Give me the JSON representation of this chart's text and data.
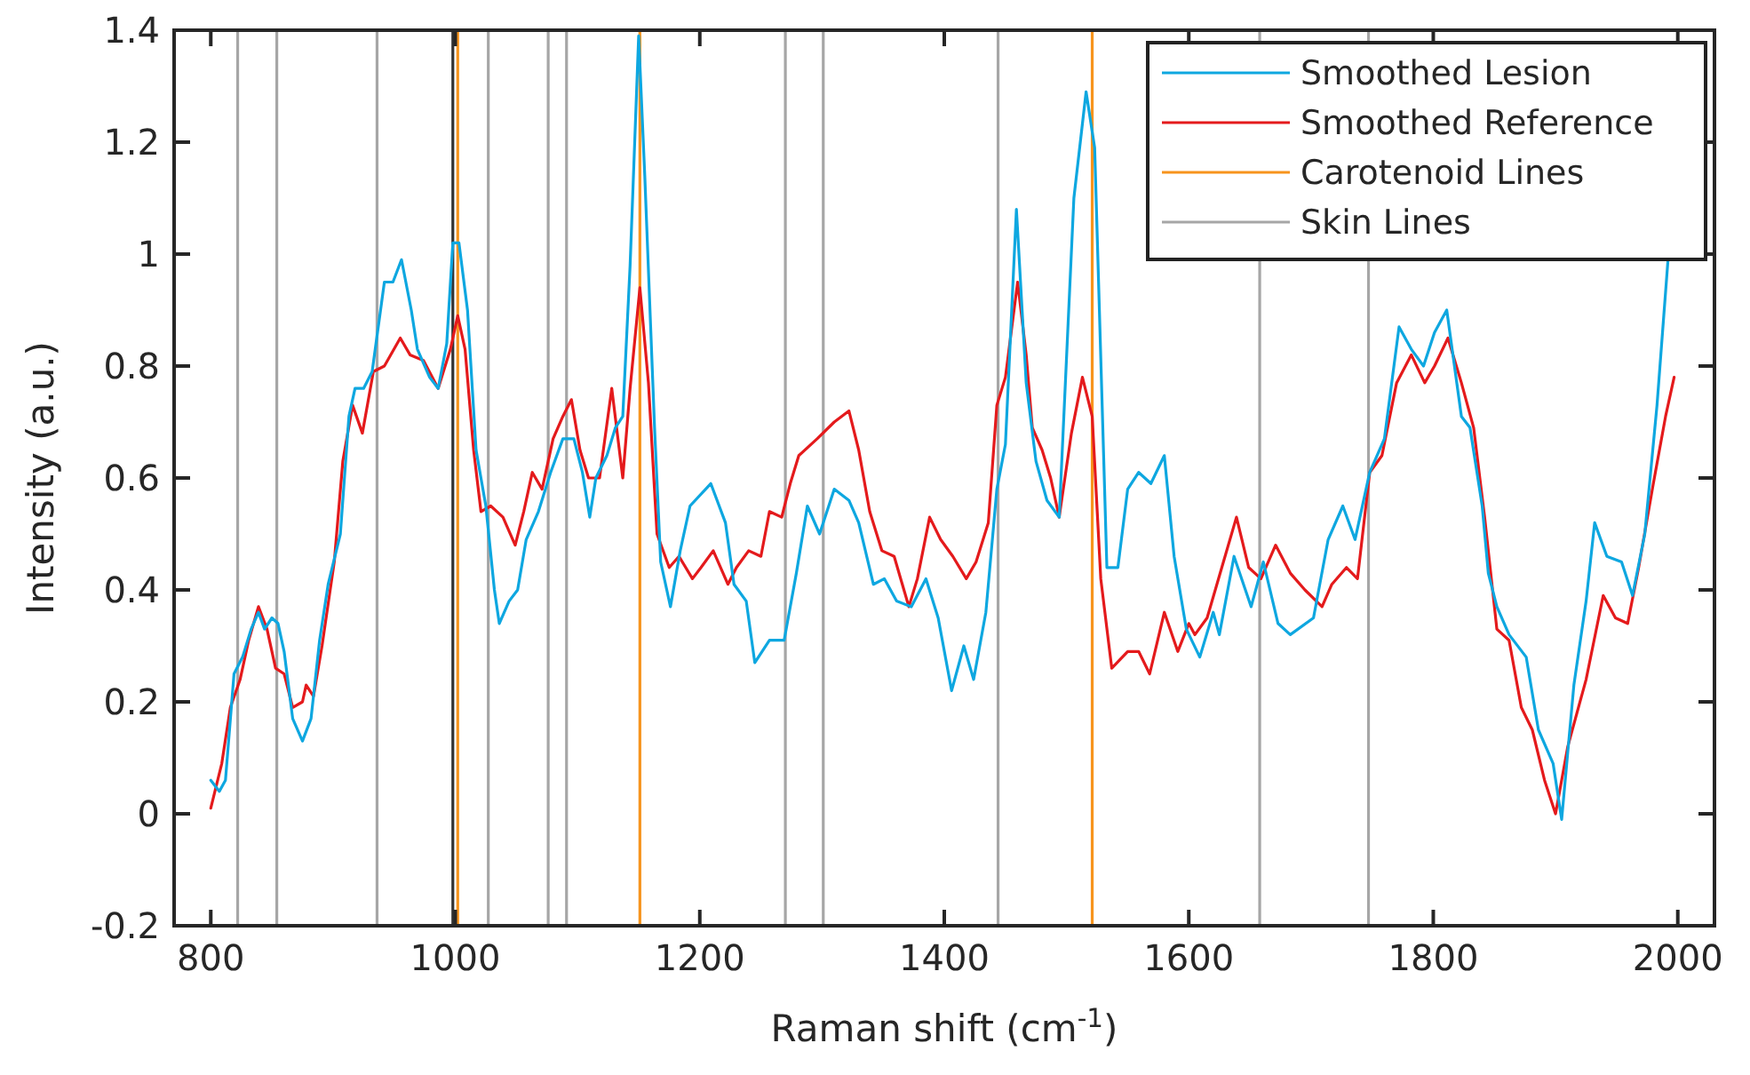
{
  "chart_data": {
    "type": "line",
    "xlabel": "Raman shift (cm$^{-1}$)",
    "ylabel": "Intensity (a.u.)",
    "xlim": [
      770,
      2030
    ],
    "ylim": [
      -0.2,
      1.4
    ],
    "xticks": [
      800,
      1000,
      1200,
      1400,
      1600,
      1800,
      2000
    ],
    "yticks": [
      -0.2,
      0,
      0.2,
      0.4,
      0.6,
      0.8,
      1,
      1.2,
      1.4
    ],
    "grid": false,
    "legend": "top right",
    "line_style": "solid",
    "marker": "none",
    "series": [
      {
        "name": "Smoothed Lesion",
        "color": "#0ea7e0",
        "x": [
          800,
          807,
          812,
          819,
          826,
          833,
          839,
          844,
          850,
          855,
          860,
          867,
          875,
          882,
          889,
          896,
          906,
          913,
          918,
          925,
          932,
          942,
          949,
          956,
          964,
          969,
          979,
          986,
          993,
          998,
          1003,
          1010,
          1017,
          1025,
          1032,
          1036,
          1044,
          1051,
          1058,
          1068,
          1078,
          1088,
          1097,
          1104,
          1110,
          1115,
          1124,
          1131,
          1137,
          1143,
          1150,
          1155,
          1163,
          1168,
          1176,
          1184,
          1192,
          1209,
          1221,
          1228,
          1238,
          1245,
          1257,
          1269,
          1279,
          1288,
          1298,
          1310,
          1322,
          1330,
          1342,
          1351,
          1361,
          1373,
          1385,
          1395,
          1406,
          1416,
          1424,
          1434,
          1443,
          1450,
          1459,
          1467,
          1475,
          1484,
          1494,
          1506,
          1516,
          1523,
          1533,
          1542,
          1550,
          1559,
          1569,
          1580,
          1588,
          1598,
          1609,
          1620,
          1625,
          1637,
          1651,
          1661,
          1673,
          1683,
          1702,
          1714,
          1726,
          1736,
          1748,
          1760,
          1772,
          1782,
          1792,
          1801,
          1811,
          1823,
          1830,
          1840,
          1845,
          1852,
          1862,
          1876,
          1886,
          1898,
          1905,
          1915,
          1925,
          1932,
          1942,
          1954,
          1963,
          1973,
          1983,
          1992
        ],
        "values": [
          0.06,
          0.04,
          0.06,
          0.25,
          0.28,
          0.33,
          0.36,
          0.33,
          0.35,
          0.34,
          0.29,
          0.17,
          0.13,
          0.17,
          0.31,
          0.41,
          0.5,
          0.71,
          0.76,
          0.76,
          0.79,
          0.95,
          0.95,
          0.99,
          0.9,
          0.83,
          0.78,
          0.76,
          0.84,
          1.02,
          1.02,
          0.9,
          0.65,
          0.55,
          0.4,
          0.34,
          0.38,
          0.4,
          0.49,
          0.54,
          0.61,
          0.67,
          0.67,
          0.61,
          0.53,
          0.6,
          0.64,
          0.69,
          0.71,
          0.98,
          1.39,
          1.14,
          0.69,
          0.45,
          0.37,
          0.47,
          0.55,
          0.59,
          0.52,
          0.41,
          0.38,
          0.27,
          0.31,
          0.31,
          0.43,
          0.55,
          0.5,
          0.58,
          0.56,
          0.52,
          0.41,
          0.42,
          0.38,
          0.37,
          0.42,
          0.35,
          0.22,
          0.3,
          0.24,
          0.36,
          0.58,
          0.66,
          1.08,
          0.77,
          0.63,
          0.56,
          0.53,
          1.1,
          1.29,
          1.19,
          0.44,
          0.44,
          0.58,
          0.61,
          0.59,
          0.64,
          0.46,
          0.33,
          0.28,
          0.36,
          0.32,
          0.46,
          0.37,
          0.45,
          0.34,
          0.32,
          0.35,
          0.49,
          0.55,
          0.49,
          0.61,
          0.67,
          0.87,
          0.83,
          0.8,
          0.86,
          0.9,
          0.71,
          0.69,
          0.55,
          0.43,
          0.37,
          0.32,
          0.28,
          0.15,
          0.09,
          -0.01,
          0.23,
          0.38,
          0.52,
          0.46,
          0.45,
          0.39,
          0.5,
          0.73,
          0.99
        ]
      },
      {
        "name": "Smoothed Reference",
        "color": "#e41a1c",
        "x": [
          800,
          809,
          816,
          824,
          831,
          839,
          846,
          853,
          860,
          867,
          875,
          878,
          884,
          891,
          901,
          908,
          916,
          924,
          933,
          942,
          955,
          963,
          974,
          986,
          996,
          1002,
          1008,
          1015,
          1021,
          1029,
          1039,
          1049,
          1056,
          1063,
          1071,
          1080,
          1088,
          1095,
          1102,
          1109,
          1118,
          1128,
          1137,
          1143,
          1151,
          1158,
          1165,
          1175,
          1183,
          1194,
          1201,
          1211,
          1223,
          1230,
          1240,
          1250,
          1257,
          1267,
          1274,
          1281,
          1296,
          1310,
          1322,
          1330,
          1339,
          1349,
          1359,
          1371,
          1378,
          1388,
          1397,
          1407,
          1418,
          1426,
          1436,
          1443,
          1450,
          1460,
          1467,
          1472,
          1480,
          1487,
          1494,
          1504,
          1513,
          1521,
          1528,
          1537,
          1550,
          1559,
          1568,
          1580,
          1591,
          1600,
          1605,
          1615,
          1627,
          1639,
          1649,
          1659,
          1671,
          1683,
          1695,
          1709,
          1717,
          1729,
          1738,
          1748,
          1758,
          1770,
          1782,
          1793,
          1801,
          1812,
          1823,
          1833,
          1842,
          1852,
          1862,
          1872,
          1881,
          1891,
          1900,
          1910,
          1925,
          1939,
          1949,
          1959,
          1968,
          1980,
          1990,
          1997
        ],
        "values": [
          0.01,
          0.09,
          0.19,
          0.24,
          0.31,
          0.37,
          0.33,
          0.26,
          0.25,
          0.19,
          0.2,
          0.23,
          0.21,
          0.3,
          0.45,
          0.63,
          0.73,
          0.68,
          0.79,
          0.8,
          0.85,
          0.82,
          0.81,
          0.76,
          0.83,
          0.89,
          0.83,
          0.65,
          0.54,
          0.55,
          0.53,
          0.48,
          0.54,
          0.61,
          0.58,
          0.67,
          0.71,
          0.74,
          0.65,
          0.6,
          0.6,
          0.76,
          0.6,
          0.76,
          0.94,
          0.77,
          0.5,
          0.44,
          0.46,
          0.42,
          0.44,
          0.47,
          0.41,
          0.44,
          0.47,
          0.46,
          0.54,
          0.53,
          0.59,
          0.64,
          0.67,
          0.7,
          0.72,
          0.65,
          0.54,
          0.47,
          0.46,
          0.37,
          0.42,
          0.53,
          0.49,
          0.46,
          0.42,
          0.45,
          0.52,
          0.73,
          0.78,
          0.95,
          0.82,
          0.69,
          0.65,
          0.6,
          0.53,
          0.68,
          0.78,
          0.71,
          0.42,
          0.26,
          0.29,
          0.29,
          0.25,
          0.36,
          0.29,
          0.34,
          0.32,
          0.35,
          0.44,
          0.53,
          0.44,
          0.42,
          0.48,
          0.43,
          0.4,
          0.37,
          0.41,
          0.44,
          0.42,
          0.61,
          0.64,
          0.77,
          0.82,
          0.77,
          0.8,
          0.85,
          0.77,
          0.69,
          0.53,
          0.33,
          0.31,
          0.19,
          0.15,
          0.06,
          0.0,
          0.12,
          0.24,
          0.39,
          0.35,
          0.34,
          0.44,
          0.59,
          0.71,
          0.78
        ]
      },
      {
        "name": "Carotenoid Lines",
        "color": "#f7941d",
        "x": [
          1002,
          1002,
          1151,
          1151,
          1521,
          1521
        ],
        "values": [
          -0.2,
          1.4,
          1.4,
          -0.2,
          -0.2,
          1.4
        ]
      },
      {
        "name": "Skin Lines",
        "color": "#a6a6a6",
        "x": [
          822,
          822,
          854,
          854,
          936,
          936,
          1027,
          1027,
          1076,
          1076,
          1091,
          1091,
          1270,
          1270,
          1301,
          1301,
          1444,
          1444,
          1658,
          1658,
          1747,
          1747
        ],
        "values": [
          -0.2,
          1.4,
          1.4,
          -0.2,
          -0.2,
          1.4,
          1.4,
          -0.2,
          -0.2,
          1.4,
          1.4,
          -0.2,
          -0.2,
          1.4,
          1.4,
          -0.2,
          -0.2,
          1.4,
          1.4,
          -0.2,
          -0.2,
          1.4
        ]
      }
    ],
    "ref_lines": [
      {
        "axis": "x",
        "value": 998,
        "color": "#333333"
      }
    ]
  }
}
